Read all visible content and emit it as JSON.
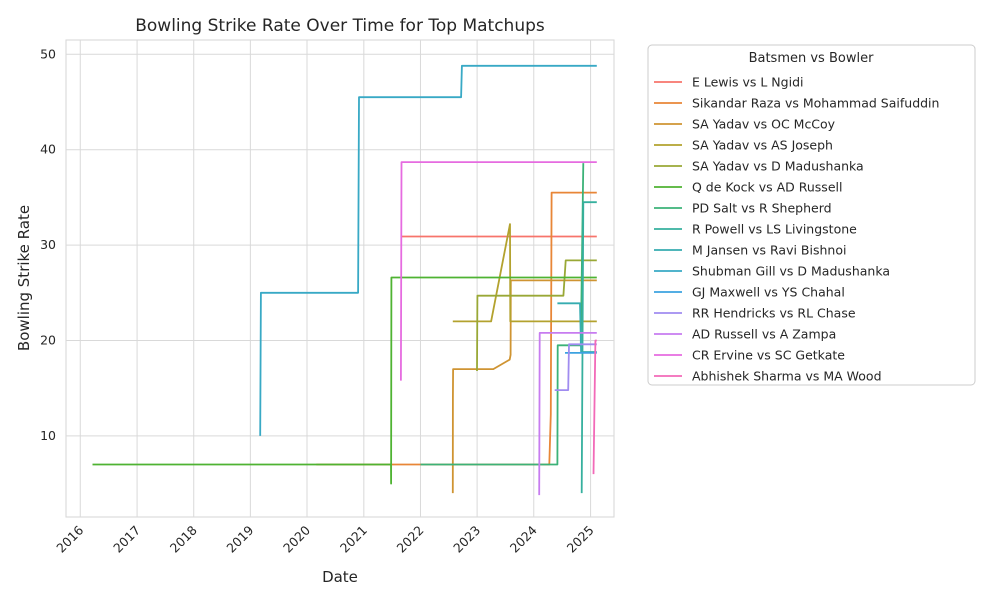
{
  "chart_data": {
    "type": "line",
    "title": "Bowling Strike Rate Over Time for Top Matchups",
    "xlabel": "Date",
    "ylabel": "Bowling Strike Rate",
    "xlim": [
      "2015-10-01",
      "2025-06-01"
    ],
    "ylim": [
      1.5,
      51.5
    ],
    "x_ticks": [
      "2016",
      "2017",
      "2018",
      "2019",
      "2020",
      "2021",
      "2022",
      "2023",
      "2024",
      "2025"
    ],
    "y_ticks": [
      10,
      20,
      30,
      40,
      50
    ],
    "grid": true,
    "legend": {
      "title": "Batsmen vs Bowler",
      "placement": "outside-right"
    },
    "series": [
      {
        "name": "E Lewis vs L Ngidi",
        "color": "#f7746b",
        "points": [
          [
            "2021-09-01",
            30.9
          ],
          [
            "2025-02-10",
            30.9
          ]
        ]
      },
      {
        "name": "Sikandar Raza vs Mohammad Saifuddin",
        "color": "#e88637",
        "points": [
          [
            "2020-03-01",
            7
          ],
          [
            "2022-02-01",
            7
          ],
          [
            "2024-04-10",
            7
          ],
          [
            "2024-04-20",
            12.3
          ],
          [
            "2024-04-25",
            35.5
          ],
          [
            "2025-02-10",
            35.5
          ]
        ]
      },
      {
        "name": "SA Yadav vs OC McCoy",
        "color": "#cf9432",
        "points": [
          [
            "2022-07-28",
            4
          ],
          [
            "2022-07-29",
            14
          ],
          [
            "2022-07-30",
            17
          ],
          [
            "2023-04-15",
            17
          ],
          [
            "2023-07-30",
            18
          ],
          [
            "2023-08-05",
            18.5
          ],
          [
            "2023-08-06",
            26.3
          ],
          [
            "2025-02-10",
            26.3
          ]
        ]
      },
      {
        "name": "SA Yadav vs AS Joseph",
        "color": "#b3a22e",
        "points": [
          [
            "2022-07-28",
            22
          ],
          [
            "2023-04-01",
            22
          ],
          [
            "2023-08-01",
            32.2
          ],
          [
            "2023-08-03",
            22
          ],
          [
            "2025-02-10",
            22
          ]
        ]
      },
      {
        "name": "SA Yadav vs D Madushanka",
        "color": "#99a836",
        "points": [
          [
            "2022-12-31",
            16.8
          ],
          [
            "2023-01-03",
            24.7
          ],
          [
            "2024-07-10",
            24.7
          ],
          [
            "2024-07-25",
            28.4
          ],
          [
            "2025-02-10",
            28.4
          ]
        ]
      },
      {
        "name": "Q de Kock vs AD Russell",
        "color": "#4fb332",
        "points": [
          [
            "2016-03-20",
            7
          ],
          [
            "2021-06-25",
            7
          ],
          [
            "2021-06-26",
            5
          ],
          [
            "2021-06-28",
            26.6
          ],
          [
            "2025-02-10",
            26.6
          ]
        ]
      },
      {
        "name": "PD Salt vs R Shepherd",
        "color": "#3cb278",
        "points": [
          [
            "2022-01-01",
            7
          ],
          [
            "2024-06-01",
            7
          ],
          [
            "2024-06-03",
            19.5
          ],
          [
            "2024-10-30",
            19.5
          ],
          [
            "2024-11-15",
            38.6
          ]
        ]
      },
      {
        "name": "R Powell vs LS Livingstone",
        "color": "#36b09e",
        "points": [
          [
            "2024-11-05",
            4
          ],
          [
            "2024-11-15",
            34.5
          ],
          [
            "2025-02-10",
            34.5
          ]
        ]
      },
      {
        "name": "M Jansen vs Ravi Bishnoi",
        "color": "#36acb0",
        "points": [
          [
            "2024-06-01",
            23.9
          ],
          [
            "2024-10-25",
            23.9
          ],
          [
            "2024-11-01",
            18.8
          ],
          [
            "2025-02-10",
            18.8
          ]
        ]
      },
      {
        "name": "Shubman Gill vs D Madushanka",
        "color": "#38a9c5",
        "points": [
          [
            "2019-03-05",
            10
          ],
          [
            "2019-03-10",
            25
          ],
          [
            "2020-11-25",
            25
          ],
          [
            "2020-12-01",
            45.5
          ],
          [
            "2022-09-20",
            45.5
          ],
          [
            "2022-09-25",
            48.8
          ],
          [
            "2025-02-10",
            48.8
          ]
        ]
      },
      {
        "name": "GJ Maxwell vs YS Chahal",
        "color": "#3ca2e0",
        "points": [
          [
            "2024-07-20",
            18.7
          ],
          [
            "2025-02-10",
            18.7
          ]
        ]
      },
      {
        "name": "RR Hendricks vs RL Chase",
        "color": "#a08cf0",
        "points": [
          [
            "2024-05-15",
            14.8
          ],
          [
            "2024-08-10",
            14.8
          ],
          [
            "2024-08-15",
            19.6
          ],
          [
            "2025-02-10",
            19.6
          ]
        ]
      },
      {
        "name": "AD Russell vs A Zampa",
        "color": "#c77cf0",
        "points": [
          [
            "2024-02-05",
            3.8
          ],
          [
            "2024-02-08",
            20.8
          ],
          [
            "2025-02-10",
            20.8
          ]
        ]
      },
      {
        "name": "CR Ervine vs SC Getkate",
        "color": "#e66be0",
        "points": [
          [
            "2021-08-28",
            15.8
          ],
          [
            "2021-09-01",
            38.7
          ],
          [
            "2025-02-10",
            38.7
          ]
        ]
      },
      {
        "name": "Abhishek Sharma vs MA Wood",
        "color": "#f26ab8",
        "points": [
          [
            "2025-01-20",
            6
          ],
          [
            "2025-02-01",
            20
          ],
          [
            "2025-02-10",
            20
          ]
        ]
      }
    ]
  }
}
